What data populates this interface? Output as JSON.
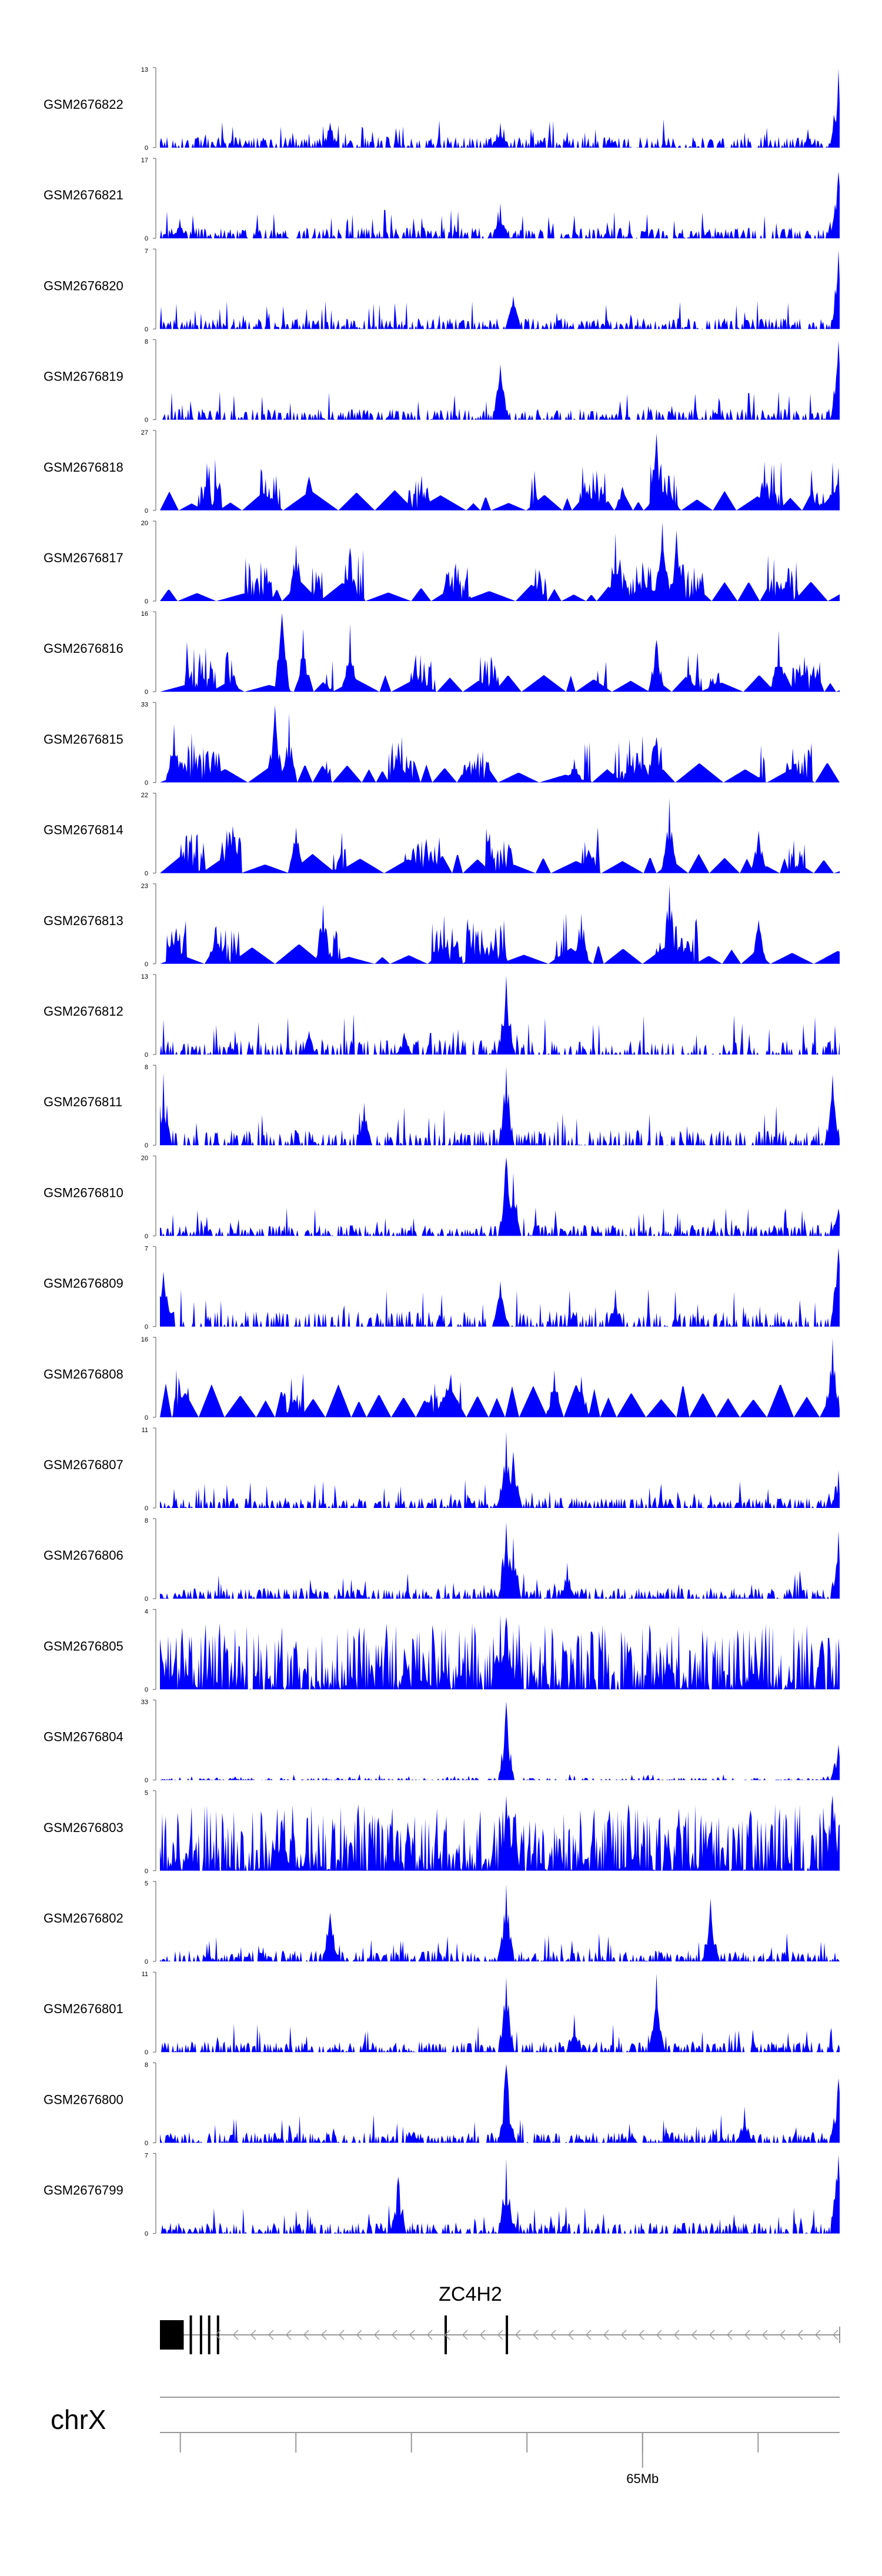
{
  "chart_data": {
    "type": "area",
    "track_color": "#0000ff",
    "x_domain": [
      0,
      1
    ],
    "tracks": [
      {
        "name": "GSM2676822",
        "ymax": "13",
        "ymin": "0",
        "pattern": "dense",
        "seed": 1,
        "peaks": [
          [
            0.5,
            0.32
          ],
          [
            0.999,
            1.0
          ],
          [
            0.25,
            0.32
          ]
        ]
      },
      {
        "name": "GSM2676821",
        "ymax": "17",
        "ymin": "0",
        "pattern": "dense",
        "seed": 2,
        "peaks": [
          [
            0.5,
            0.45
          ],
          [
            0.999,
            0.85
          ],
          [
            0.03,
            0.25
          ]
        ]
      },
      {
        "name": "GSM2676820",
        "ymax": "7",
        "ymin": "0",
        "pattern": "dense",
        "seed": 3,
        "peaks": [
          [
            0.999,
            1.0
          ],
          [
            0.52,
            0.42
          ]
        ]
      },
      {
        "name": "GSM2676819",
        "ymax": "8",
        "ymin": "0",
        "pattern": "dense",
        "seed": 4,
        "peaks": [
          [
            0.5,
            0.7
          ],
          [
            0.999,
            1.0
          ]
        ]
      },
      {
        "name": "GSM2676818",
        "ymax": "27",
        "ymin": "0",
        "pattern": "sparse",
        "seed": 5,
        "peaks": [
          [
            0.73,
            0.98
          ],
          [
            0.68,
            0.3
          ],
          [
            0.89,
            0.62
          ],
          [
            0.22,
            0.43
          ]
        ]
      },
      {
        "name": "GSM2676817",
        "ymax": "20",
        "ymin": "0",
        "pattern": "sparse",
        "seed": 6,
        "peaks": [
          [
            0.74,
            1.0
          ],
          [
            0.76,
            0.9
          ],
          [
            0.67,
            0.86
          ],
          [
            0.2,
            0.72
          ],
          [
            0.28,
            0.68
          ]
        ]
      },
      {
        "name": "GSM2676816",
        "ymax": "16",
        "ymin": "0",
        "pattern": "sparse",
        "seed": 7,
        "peaks": [
          [
            0.18,
            1.0
          ],
          [
            0.28,
            0.86
          ],
          [
            0.21,
            0.8
          ],
          [
            0.91,
            0.78
          ],
          [
            0.73,
            0.66
          ]
        ]
      },
      {
        "name": "GSM2676815",
        "ymax": "33",
        "ymin": "0",
        "pattern": "sparse",
        "seed": 8,
        "peaks": [
          [
            0.17,
            0.98
          ],
          [
            0.19,
            0.88
          ],
          [
            0.02,
            0.74
          ],
          [
            0.61,
            0.3
          ],
          [
            0.73,
            0.58
          ]
        ]
      },
      {
        "name": "GSM2676814",
        "ymax": "22",
        "ymin": "0",
        "pattern": "sparse",
        "seed": 9,
        "peaks": [
          [
            0.75,
            0.95
          ],
          [
            0.2,
            0.58
          ],
          [
            0.88,
            0.54
          ],
          [
            0.63,
            0.3
          ]
        ]
      },
      {
        "name": "GSM2676813",
        "ymax": "23",
        "ymin": "0",
        "pattern": "sparse",
        "seed": 10,
        "peaks": [
          [
            0.75,
            1.0
          ],
          [
            0.24,
            0.76
          ],
          [
            0.62,
            0.64
          ],
          [
            0.88,
            0.56
          ],
          [
            0.08,
            0.28
          ]
        ]
      },
      {
        "name": "GSM2676812",
        "ymax": "13",
        "ymin": "0",
        "pattern": "medium",
        "seed": 11,
        "peaks": [
          [
            0.51,
            1.0
          ],
          [
            0.22,
            0.3
          ],
          [
            0.36,
            0.28
          ]
        ]
      },
      {
        "name": "GSM2676811",
        "ymax": "8",
        "ymin": "0",
        "pattern": "medium",
        "seed": 12,
        "peaks": [
          [
            0.51,
            1.0
          ],
          [
            0.005,
            0.92
          ],
          [
            0.99,
            0.9
          ],
          [
            0.3,
            0.54
          ]
        ]
      },
      {
        "name": "GSM2676810",
        "ymax": "20",
        "ymin": "0",
        "pattern": "dense",
        "seed": 13,
        "peaks": [
          [
            0.51,
            1.0
          ],
          [
            0.52,
            0.8
          ],
          [
            0.999,
            0.35
          ]
        ]
      },
      {
        "name": "GSM2676809",
        "ymax": "7",
        "ymin": "0",
        "pattern": "medium",
        "seed": 14,
        "peaks": [
          [
            0.999,
            1.0
          ],
          [
            0.5,
            0.58
          ],
          [
            0.005,
            0.7
          ],
          [
            0.67,
            0.48
          ]
        ]
      },
      {
        "name": "GSM2676808",
        "ymax": "16",
        "ymin": "0",
        "pattern": "triangles",
        "seed": 15,
        "peaks": [
          [
            0.99,
            1.0
          ],
          [
            0.58,
            0.6
          ],
          [
            0.62,
            0.52
          ]
        ]
      },
      {
        "name": "GSM2676807",
        "ymax": "11",
        "ymin": "0",
        "pattern": "dense",
        "seed": 16,
        "peaks": [
          [
            0.51,
            0.97
          ],
          [
            0.999,
            0.48
          ],
          [
            0.52,
            0.72
          ]
        ]
      },
      {
        "name": "GSM2676806",
        "ymax": "8",
        "ymin": "0",
        "pattern": "dense",
        "seed": 17,
        "peaks": [
          [
            0.51,
            0.97
          ],
          [
            0.52,
            0.78
          ],
          [
            0.6,
            0.46
          ],
          [
            0.999,
            0.86
          ]
        ]
      },
      {
        "name": "GSM2676805",
        "ymax": "4",
        "ymin": "0",
        "pattern": "verydense",
        "seed": 18,
        "peaks": [
          [
            0.5,
            0.95
          ],
          [
            0.51,
            0.92
          ]
        ]
      },
      {
        "name": "GSM2676804",
        "ymax": "33",
        "ymin": "0",
        "pattern": "lowdense",
        "seed": 19,
        "peaks": [
          [
            0.51,
            1.0
          ],
          [
            0.999,
            0.45
          ]
        ]
      },
      {
        "name": "GSM2676803",
        "ymax": "5",
        "ymin": "0",
        "pattern": "verydense",
        "seed": 20,
        "peaks": [
          [
            0.51,
            0.95
          ],
          [
            0.99,
            0.96
          ]
        ]
      },
      {
        "name": "GSM2676802",
        "ymax": "5",
        "ymin": "0",
        "pattern": "dense",
        "seed": 21,
        "peaks": [
          [
            0.51,
            0.98
          ],
          [
            0.81,
            0.8
          ],
          [
            0.25,
            0.62
          ]
        ]
      },
      {
        "name": "GSM2676801",
        "ymax": "11",
        "ymin": "0",
        "pattern": "dense",
        "seed": 22,
        "peaks": [
          [
            0.73,
            1.0
          ],
          [
            0.51,
            0.95
          ],
          [
            0.61,
            0.48
          ]
        ]
      },
      {
        "name": "GSM2676800",
        "ymax": "8",
        "ymin": "0",
        "pattern": "dense",
        "seed": 23,
        "peaks": [
          [
            0.51,
            1.0
          ],
          [
            0.86,
            0.46
          ],
          [
            0.999,
            0.82
          ]
        ]
      },
      {
        "name": "GSM2676799",
        "ymax": "7",
        "ymin": "0",
        "pattern": "dense",
        "seed": 24,
        "peaks": [
          [
            0.51,
            0.95
          ],
          [
            0.35,
            0.72
          ],
          [
            0.999,
            1.0
          ]
        ]
      }
    ],
    "gene_track": {
      "gene_name": "ZC4H2",
      "strand": "-",
      "exon_fracs": [
        0.0,
        0.035
      ],
      "thin_exon_fracs": [
        0.045,
        0.06,
        0.072,
        0.085,
        0.42,
        0.51
      ]
    },
    "chromosome": "chrX",
    "position_axis": {
      "tick_fracs": [
        0.03,
        0.2,
        0.37,
        0.54,
        0.71,
        0.88
      ],
      "labeled_tick": {
        "frac": 0.71,
        "label": "65Mb"
      }
    }
  }
}
